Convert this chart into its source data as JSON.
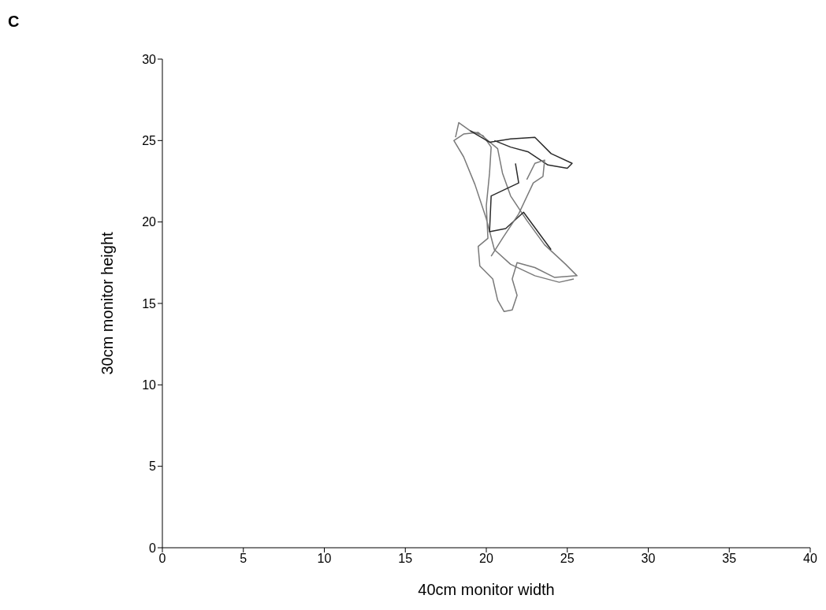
{
  "chart_data": {
    "type": "line",
    "title": "C",
    "xlabel": "40cm monitor width",
    "ylabel": "30cm monitor height",
    "xlim": [
      0,
      40
    ],
    "xticks": [
      0,
      5,
      10,
      15,
      20,
      25,
      30,
      35,
      40
    ],
    "ylim": [
      0,
      30
    ],
    "yticks": [
      0,
      5,
      10,
      15,
      20,
      25,
      30
    ],
    "grid": false,
    "marker": "none",
    "line_style": "solid",
    "series": [
      {
        "color": "#7a7a7a",
        "x": [
          18.1,
          18.3,
          19.0,
          19.8,
          20.3,
          20.2,
          20.0,
          20.1,
          19.5,
          19.6,
          20.4,
          20.7,
          21.1,
          21.6,
          21.9,
          21.6,
          21.9,
          23.0,
          24.2,
          25.6,
          24.9,
          23.6,
          22.5,
          21.5,
          21.0,
          20.7,
          19.5,
          18.6,
          18.0,
          18.6,
          19.3,
          20.0,
          20.5,
          21.5,
          23.0,
          24.5,
          25.4
        ],
        "values": [
          25.2,
          26.1,
          25.6,
          25.3,
          24.6,
          23.0,
          21.0,
          19.0,
          18.5,
          17.3,
          16.5,
          15.2,
          14.5,
          14.6,
          15.5,
          16.5,
          17.5,
          17.2,
          16.6,
          16.7,
          17.4,
          18.6,
          20.1,
          21.6,
          23.0,
          24.5,
          25.5,
          25.4,
          25.0,
          24.0,
          22.3,
          20.2,
          18.3,
          17.4,
          16.7,
          16.3,
          16.5
        ]
      },
      {
        "color": "#2b2b2b",
        "x": [
          19.0,
          20.2,
          21.5,
          23.0,
          24.0,
          25.3,
          25.0,
          23.8,
          22.6,
          21.5,
          20.5
        ],
        "values": [
          25.6,
          24.9,
          25.1,
          25.2,
          24.2,
          23.6,
          23.3,
          23.5,
          24.3,
          24.6,
          25.0
        ]
      },
      {
        "color": "#2b2b2b",
        "x": [
          21.8,
          22.0,
          20.3,
          20.2,
          21.2,
          22.3,
          24.0
        ],
        "values": [
          23.6,
          22.4,
          21.6,
          19.4,
          19.6,
          20.6,
          18.3
        ]
      },
      {
        "color": "#7a7a7a",
        "x": [
          22.5,
          23.0,
          23.6,
          23.5,
          22.9,
          22.0,
          21.0,
          20.3
        ],
        "values": [
          22.6,
          23.6,
          23.8,
          22.8,
          22.4,
          20.5,
          19.0,
          17.9
        ]
      }
    ]
  }
}
